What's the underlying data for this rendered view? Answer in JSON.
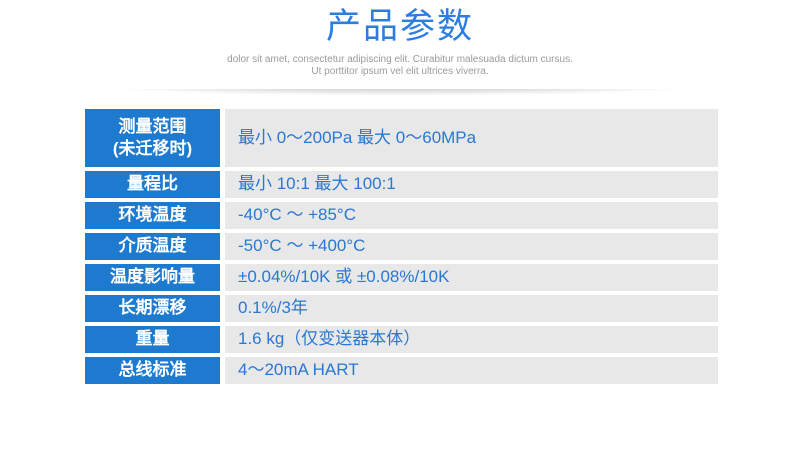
{
  "header": {
    "title": "产品参数",
    "subtitle_line1": "dolor sit amet, consectetur adipiscing elit. Curabitur malesuada dictum cursus.",
    "subtitle_line2": "Ut porttitor ipsum vel elit ultrices viverra."
  },
  "colors": {
    "title_blue": "#2b7de2",
    "label_cell_blue": "#1e7ace",
    "value_text_blue": "#2878d4",
    "value_cell_gray": "#e8e8e8",
    "subtitle_gray": "#9b9b9b"
  },
  "spec_table": {
    "rows": [
      {
        "label": "测量范围\n(未迁移时)",
        "value": "最小 0～200Pa 最大 0～60MPa",
        "tall": true
      },
      {
        "label": "量程比",
        "value": "最小 10:1 最大 100:1",
        "tall": false
      },
      {
        "label": "环境温度",
        "value": "-40°C ～ +85°C",
        "tall": false
      },
      {
        "label": "介质温度",
        "value": "-50°C ～ +400°C",
        "tall": false
      },
      {
        "label": "温度影响量",
        "value": "±0.04%/10K 或 ±0.08%/10K",
        "tall": false
      },
      {
        "label": "长期漂移",
        "value": "0.1%/3年",
        "tall": false
      },
      {
        "label": "重量",
        "value": "1.6 kg（仅变送器本体）",
        "tall": false
      },
      {
        "label": "总线标准",
        "value": "4～20mA HART",
        "tall": false
      }
    ]
  }
}
